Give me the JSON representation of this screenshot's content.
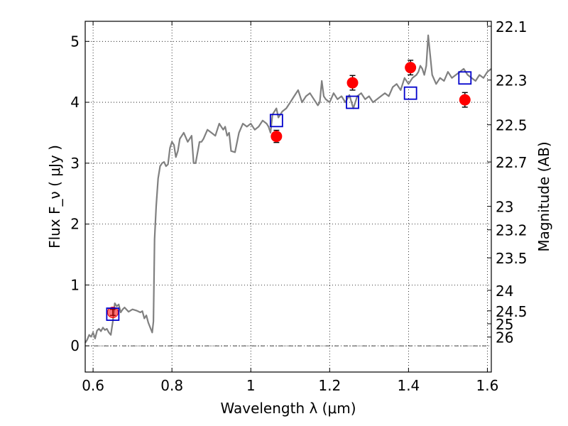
{
  "chart_data": {
    "type": "scatter",
    "xlabel": "Wavelength  λ (μm)",
    "ylabel": "Flux  F_ν  ( μJy )",
    "y2label": "Magnitude (AB)",
    "xlim": [
      0.58,
      1.61
    ],
    "ylim": [
      -0.43,
      5.33
    ],
    "grid": true,
    "x_ticks": [
      {
        "value": 0.6,
        "label": "0.6"
      },
      {
        "value": 0.8,
        "label": "0.8"
      },
      {
        "value": 1.0,
        "label": "1"
      },
      {
        "value": 1.2,
        "label": "1.2"
      },
      {
        "value": 1.4,
        "label": "1.4"
      },
      {
        "value": 1.6,
        "label": "1.6"
      }
    ],
    "y_ticks": [
      {
        "value": 0,
        "label": "0"
      },
      {
        "value": 1,
        "label": "1"
      },
      {
        "value": 2,
        "label": "2"
      },
      {
        "value": 3,
        "label": "3"
      },
      {
        "value": 4,
        "label": "4"
      },
      {
        "value": 5,
        "label": "5"
      }
    ],
    "y2_ticks": [
      {
        "value": 22.1,
        "label": "22.1"
      },
      {
        "value": 22.3,
        "label": "22.3"
      },
      {
        "value": 22.5,
        "label": "22.5"
      },
      {
        "value": 22.7,
        "label": "22.7"
      },
      {
        "value": 23.0,
        "label": "23"
      },
      {
        "value": 23.2,
        "label": "23.2"
      },
      {
        "value": 23.5,
        "label": "23.5"
      },
      {
        "value": 24.0,
        "label": "24"
      },
      {
        "value": 24.5,
        "label": "24.5"
      },
      {
        "value": 25.0,
        "label": "25"
      },
      {
        "value": 26.0,
        "label": "26"
      }
    ],
    "series": [
      {
        "type": "line",
        "color": "#808080",
        "x": [
          0.58,
          0.585,
          0.59,
          0.595,
          0.6,
          0.605,
          0.61,
          0.615,
          0.62,
          0.625,
          0.63,
          0.635,
          0.64,
          0.645,
          0.65,
          0.655,
          0.66,
          0.665,
          0.67,
          0.675,
          0.68,
          0.69,
          0.7,
          0.71,
          0.72,
          0.725,
          0.73,
          0.735,
          0.74,
          0.745,
          0.75,
          0.753,
          0.756,
          0.76,
          0.765,
          0.77,
          0.775,
          0.78,
          0.785,
          0.79,
          0.795,
          0.8,
          0.805,
          0.81,
          0.815,
          0.82,
          0.825,
          0.83,
          0.84,
          0.85,
          0.855,
          0.86,
          0.87,
          0.875,
          0.88,
          0.89,
          0.9,
          0.91,
          0.92,
          0.93,
          0.935,
          0.94,
          0.945,
          0.95,
          0.96,
          0.97,
          0.98,
          0.99,
          1.0,
          1.01,
          1.02,
          1.03,
          1.04,
          1.045,
          1.05,
          1.055,
          1.06,
          1.065,
          1.07,
          1.075,
          1.08,
          1.09,
          1.1,
          1.11,
          1.12,
          1.13,
          1.14,
          1.15,
          1.16,
          1.17,
          1.175,
          1.18,
          1.185,
          1.19,
          1.2,
          1.21,
          1.22,
          1.23,
          1.24,
          1.25,
          1.26,
          1.265,
          1.27,
          1.28,
          1.29,
          1.3,
          1.31,
          1.32,
          1.33,
          1.34,
          1.35,
          1.36,
          1.37,
          1.38,
          1.39,
          1.4,
          1.41,
          1.42,
          1.425,
          1.43,
          1.435,
          1.44,
          1.445,
          1.45,
          1.46,
          1.47,
          1.48,
          1.49,
          1.5,
          1.51,
          1.52,
          1.53,
          1.54,
          1.55,
          1.56,
          1.57,
          1.58,
          1.59,
          1.6,
          1.61
        ],
        "y": [
          0.05,
          0.1,
          0.18,
          0.15,
          0.22,
          0.12,
          0.25,
          0.28,
          0.24,
          0.3,
          0.26,
          0.28,
          0.22,
          0.18,
          0.4,
          0.7,
          0.65,
          0.68,
          0.55,
          0.6,
          0.63,
          0.56,
          0.6,
          0.58,
          0.55,
          0.57,
          0.45,
          0.5,
          0.38,
          0.3,
          0.22,
          0.4,
          1.75,
          2.3,
          2.75,
          2.95,
          3.0,
          3.02,
          2.95,
          2.98,
          3.25,
          3.35,
          3.3,
          3.1,
          3.2,
          3.4,
          3.45,
          3.5,
          3.35,
          3.45,
          3.0,
          3.0,
          3.35,
          3.35,
          3.4,
          3.55,
          3.5,
          3.45,
          3.65,
          3.55,
          3.6,
          3.45,
          3.5,
          3.2,
          3.18,
          3.5,
          3.65,
          3.6,
          3.65,
          3.55,
          3.6,
          3.7,
          3.65,
          3.6,
          3.5,
          3.8,
          3.85,
          3.9,
          3.75,
          3.8,
          3.85,
          3.9,
          4.0,
          4.1,
          4.2,
          4.0,
          4.1,
          4.15,
          4.05,
          3.95,
          4.0,
          4.35,
          4.1,
          4.05,
          4.0,
          4.15,
          4.05,
          4.1,
          4.0,
          4.12,
          3.9,
          4.0,
          4.1,
          4.15,
          4.05,
          4.1,
          4.0,
          4.05,
          4.1,
          4.15,
          4.1,
          4.25,
          4.3,
          4.2,
          4.4,
          4.3,
          4.4,
          4.45,
          4.5,
          4.6,
          4.55,
          4.45,
          4.6,
          5.1,
          4.45,
          4.3,
          4.4,
          4.35,
          4.5,
          4.4,
          4.45,
          4.5,
          4.55,
          4.45,
          4.4,
          4.35,
          4.45,
          4.4,
          4.5,
          4.55
        ]
      },
      {
        "type": "scatter",
        "marker": "circle",
        "color": "#ff0000",
        "x": [
          0.65,
          1.065,
          1.258,
          1.405,
          1.543
        ],
        "y": [
          0.55,
          3.44,
          4.32,
          4.57,
          4.04
        ],
        "yerr": [
          0.05,
          0.1,
          0.12,
          0.12,
          0.12
        ]
      },
      {
        "type": "scatter",
        "marker": "square",
        "color": "#0000cc",
        "x": [
          0.65,
          1.065,
          1.258,
          1.405,
          1.543
        ],
        "y": [
          0.52,
          3.7,
          4.0,
          4.15,
          4.4
        ]
      }
    ]
  }
}
